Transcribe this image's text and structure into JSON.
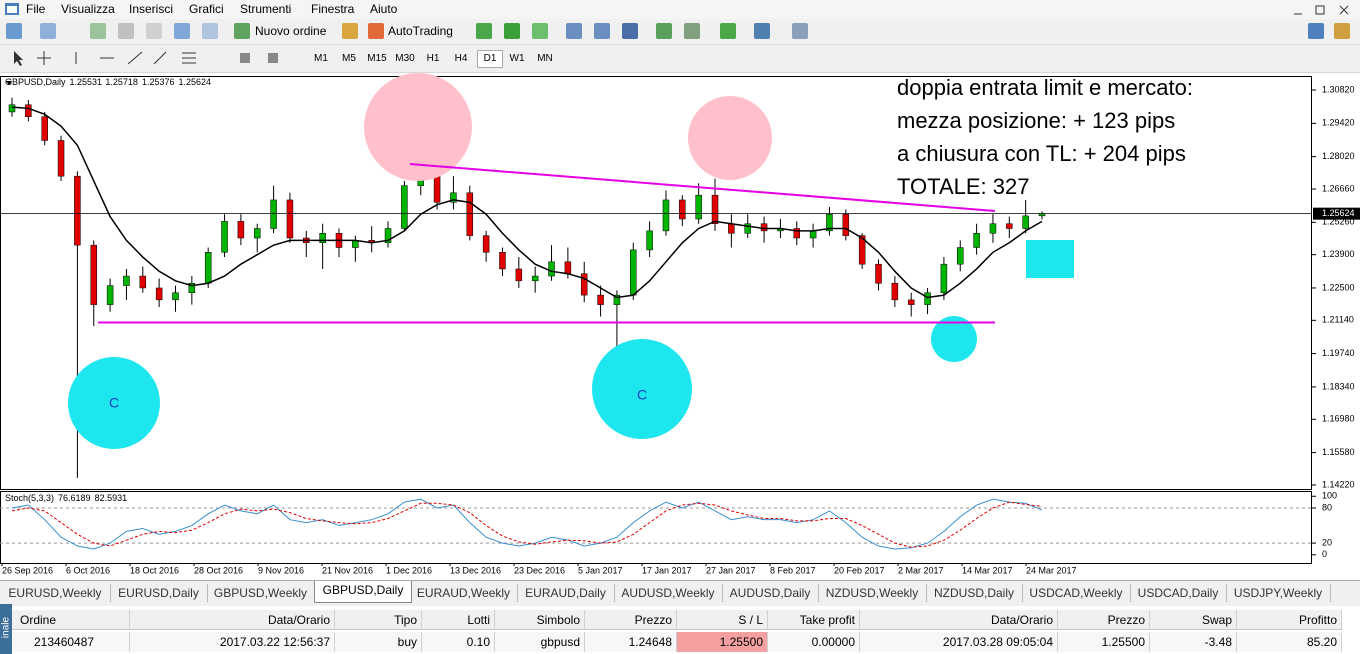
{
  "menu": [
    "File",
    "Visualizza",
    "Inserisci",
    "Grafici",
    "Strumenti",
    "Finestra",
    "Aiuto"
  ],
  "toolbar": {
    "new_order": "Nuovo ordine",
    "autotrading": "AutoTrading"
  },
  "timeframes": [
    "M1",
    "M5",
    "M15",
    "M30",
    "H1",
    "H4",
    "D1",
    "W1",
    "MN"
  ],
  "chart_data": {
    "type": "candlestick",
    "symbol": "GBPUSD,Daily",
    "ylim": [
      1.1405,
      1.3141
    ],
    "yticks": [
      {
        "value": 1.3082,
        "label": "1.30820"
      },
      {
        "value": 1.2942,
        "label": "1.29420"
      },
      {
        "value": 1.2802,
        "label": "1.28020"
      },
      {
        "value": 1.2666,
        "label": "1.26660"
      },
      {
        "value": 1.2526,
        "label": "1.25260"
      },
      {
        "value": 1.239,
        "label": "1.23900"
      },
      {
        "value": 1.225,
        "label": "1.22500"
      },
      {
        "value": 1.2114,
        "label": "1.21140"
      },
      {
        "value": 1.1974,
        "label": "1.19740"
      },
      {
        "value": 1.1834,
        "label": "1.18340"
      },
      {
        "value": 1.1698,
        "label": "1.16980"
      },
      {
        "value": 1.1558,
        "label": "1.15580"
      },
      {
        "value": 1.1422,
        "label": "1.14220"
      }
    ],
    "x_labels": [
      "26 Sep 2016",
      "6 Oct 2016",
      "18 Oct 2016",
      "28 Oct 2016",
      "9 Nov 2016",
      "21 Nov 2016",
      "1 Dec 2016",
      "13 Dec 2016",
      "23 Dec 2016",
      "5 Jan 2017",
      "17 Jan 2017",
      "27 Jan 2017",
      "8 Feb 2017",
      "20 Feb 2017",
      "2 Mar 2017",
      "14 Mar 2017",
      "24 Mar 2017"
    ],
    "bull_color": "#00b400",
    "bear_color": "#e00000",
    "ohlc": [
      [
        1.299,
        1.305,
        1.297,
        1.302
      ],
      [
        1.302,
        1.304,
        1.295,
        1.297
      ],
      [
        1.297,
        1.299,
        1.285,
        1.287
      ],
      [
        1.287,
        1.289,
        1.27,
        1.272
      ],
      [
        1.272,
        1.274,
        1.1452,
        1.243
      ],
      [
        1.243,
        1.245,
        1.209,
        1.218
      ],
      [
        1.218,
        1.229,
        1.215,
        1.226
      ],
      [
        1.226,
        1.233,
        1.22,
        1.23
      ],
      [
        1.23,
        1.234,
        1.223,
        1.225
      ],
      [
        1.225,
        1.229,
        1.217,
        1.22
      ],
      [
        1.22,
        1.226,
        1.215,
        1.223
      ],
      [
        1.223,
        1.23,
        1.218,
        1.227
      ],
      [
        1.227,
        1.242,
        1.225,
        1.24
      ],
      [
        1.24,
        1.256,
        1.238,
        1.253
      ],
      [
        1.253,
        1.256,
        1.243,
        1.246
      ],
      [
        1.246,
        1.252,
        1.24,
        1.25
      ],
      [
        1.25,
        1.268,
        1.248,
        1.262
      ],
      [
        1.262,
        1.265,
        1.244,
        1.246
      ],
      [
        1.246,
        1.249,
        1.238,
        1.244
      ],
      [
        1.244,
        1.252,
        1.233,
        1.248
      ],
      [
        1.248,
        1.25,
        1.238,
        1.242
      ],
      [
        1.242,
        1.247,
        1.236,
        1.245
      ],
      [
        1.245,
        1.251,
        1.24,
        1.244
      ],
      [
        1.244,
        1.253,
        1.242,
        1.25
      ],
      [
        1.25,
        1.27,
        1.249,
        1.268
      ],
      [
        1.268,
        1.277,
        1.264,
        1.273
      ],
      [
        1.273,
        1.275,
        1.258,
        1.261
      ],
      [
        1.261,
        1.272,
        1.258,
        1.265
      ],
      [
        1.265,
        1.268,
        1.245,
        1.247
      ],
      [
        1.247,
        1.249,
        1.236,
        1.24
      ],
      [
        1.24,
        1.242,
        1.23,
        1.233
      ],
      [
        1.233,
        1.238,
        1.225,
        1.228
      ],
      [
        1.228,
        1.234,
        1.223,
        1.23
      ],
      [
        1.23,
        1.243,
        1.228,
        1.236
      ],
      [
        1.236,
        1.242,
        1.229,
        1.231
      ],
      [
        1.231,
        1.236,
        1.219,
        1.222
      ],
      [
        1.222,
        1.226,
        1.213,
        1.218
      ],
      [
        1.218,
        1.224,
        1.2,
        1.222
      ],
      [
        1.222,
        1.244,
        1.22,
        1.241
      ],
      [
        1.241,
        1.253,
        1.238,
        1.249
      ],
      [
        1.249,
        1.266,
        1.247,
        1.262
      ],
      [
        1.262,
        1.264,
        1.251,
        1.254
      ],
      [
        1.254,
        1.269,
        1.252,
        1.264
      ],
      [
        1.264,
        1.271,
        1.249,
        1.252
      ],
      [
        1.252,
        1.256,
        1.242,
        1.248
      ],
      [
        1.248,
        1.256,
        1.246,
        1.252
      ],
      [
        1.252,
        1.255,
        1.244,
        1.249
      ],
      [
        1.249,
        1.254,
        1.246,
        1.25
      ],
      [
        1.25,
        1.253,
        1.243,
        1.246
      ],
      [
        1.246,
        1.252,
        1.242,
        1.249
      ],
      [
        1.249,
        1.259,
        1.247,
        1.256
      ],
      [
        1.256,
        1.258,
        1.245,
        1.247
      ],
      [
        1.247,
        1.248,
        1.233,
        1.235
      ],
      [
        1.235,
        1.237,
        1.224,
        1.227
      ],
      [
        1.227,
        1.23,
        1.217,
        1.22
      ],
      [
        1.22,
        1.223,
        1.213,
        1.218
      ],
      [
        1.218,
        1.225,
        1.214,
        1.223
      ],
      [
        1.223,
        1.238,
        1.22,
        1.235
      ],
      [
        1.235,
        1.245,
        1.232,
        1.242
      ],
      [
        1.242,
        1.252,
        1.239,
        1.248
      ],
      [
        1.248,
        1.256,
        1.244,
        1.252
      ],
      [
        1.252,
        1.255,
        1.246,
        1.25
      ],
      [
        1.25,
        1.262,
        1.248,
        1.2553
      ],
      [
        1.25531,
        1.25718,
        1.25376,
        1.25624
      ]
    ],
    "ma": [
      1.301,
      1.3005,
      1.298,
      1.293,
      1.285,
      1.27,
      1.255,
      1.245,
      1.238,
      1.232,
      1.228,
      1.226,
      1.227,
      1.23,
      1.235,
      1.239,
      1.243,
      1.245,
      1.245,
      1.245,
      1.245,
      1.245,
      1.244,
      1.245,
      1.249,
      1.256,
      1.26,
      1.262,
      1.261,
      1.256,
      1.248,
      1.241,
      1.235,
      1.232,
      1.231,
      1.229,
      1.225,
      1.221,
      1.222,
      1.228,
      1.236,
      1.244,
      1.25,
      1.253,
      1.252,
      1.251,
      1.25,
      1.25,
      1.249,
      1.249,
      1.25,
      1.25,
      1.246,
      1.24,
      1.232,
      1.225,
      1.221,
      1.222,
      1.227,
      1.233,
      1.24,
      1.244,
      1.249,
      1.253
    ],
    "ma_color": "#000000",
    "annotations": [
      "doppia entrata limit e mercato:",
      "mezza posizione: + 123 pips",
      "a chiusura con TL: + 204 pips",
      "TOTALE: 327"
    ],
    "circle_labels": [
      "C",
      "C"
    ],
    "stochastic": {
      "label": "Stoch(5,3,3)",
      "ylim": [
        -14,
        109
      ],
      "yticks": [
        100,
        80,
        20,
        0
      ],
      "main_color": "#3a8fd0",
      "signal_color": "#e00000",
      "main": [
        80,
        85,
        60,
        30,
        15,
        10,
        20,
        40,
        45,
        35,
        40,
        50,
        70,
        85,
        75,
        70,
        85,
        60,
        55,
        60,
        50,
        55,
        60,
        70,
        90,
        95,
        80,
        85,
        55,
        30,
        20,
        15,
        20,
        30,
        25,
        15,
        20,
        30,
        55,
        75,
        90,
        80,
        90,
        75,
        60,
        65,
        60,
        60,
        55,
        60,
        75,
        55,
        30,
        15,
        10,
        12,
        20,
        40,
        65,
        85,
        95,
        90,
        88,
        76.6189
      ],
      "signal": [
        75,
        80,
        75,
        55,
        35,
        20,
        15,
        25,
        35,
        40,
        38,
        42,
        55,
        70,
        78,
        75,
        78,
        72,
        62,
        58,
        55,
        53,
        55,
        62,
        75,
        88,
        88,
        85,
        72,
        50,
        32,
        22,
        18,
        22,
        25,
        24,
        20,
        22,
        35,
        55,
        75,
        85,
        88,
        85,
        75,
        68,
        62,
        62,
        58,
        58,
        62,
        62,
        50,
        35,
        20,
        13,
        15,
        25,
        42,
        62,
        80,
        90,
        86,
        82.5931
      ]
    }
  },
  "tabs": [
    "EURUSD,Weekly",
    "EURUSD,Daily",
    "GBPUSD,Weekly",
    "GBPUSD,Daily",
    "EURAUD,Weekly",
    "EURAUD,Daily",
    "AUDUSD,Weekly",
    "AUDUSD,Daily",
    "NZDUSD,Weekly",
    "NZDUSD,Daily",
    "USDCAD,Weekly",
    "USDCAD,Daily",
    "USDJPY,Weekly"
  ],
  "active_tab": 3,
  "table": {
    "header": [
      "Ordine",
      "Data/Orario",
      "Tipo",
      "Lotti",
      "Simbolo",
      "Prezzo",
      "S / L",
      "Take profit",
      "Data/Orario",
      "Prezzo",
      "Swap",
      "Profitto"
    ],
    "rows": [
      [
        "213460487",
        "2017.03.22 12:56:37",
        "buy",
        "0.10",
        "gbpusd",
        "1.24648",
        "1.25500",
        "0.00000",
        "2017.03.28 09:05:04",
        "1.25500",
        "-3.48",
        "85.20"
      ]
    ]
  },
  "side_tab": "inale"
}
